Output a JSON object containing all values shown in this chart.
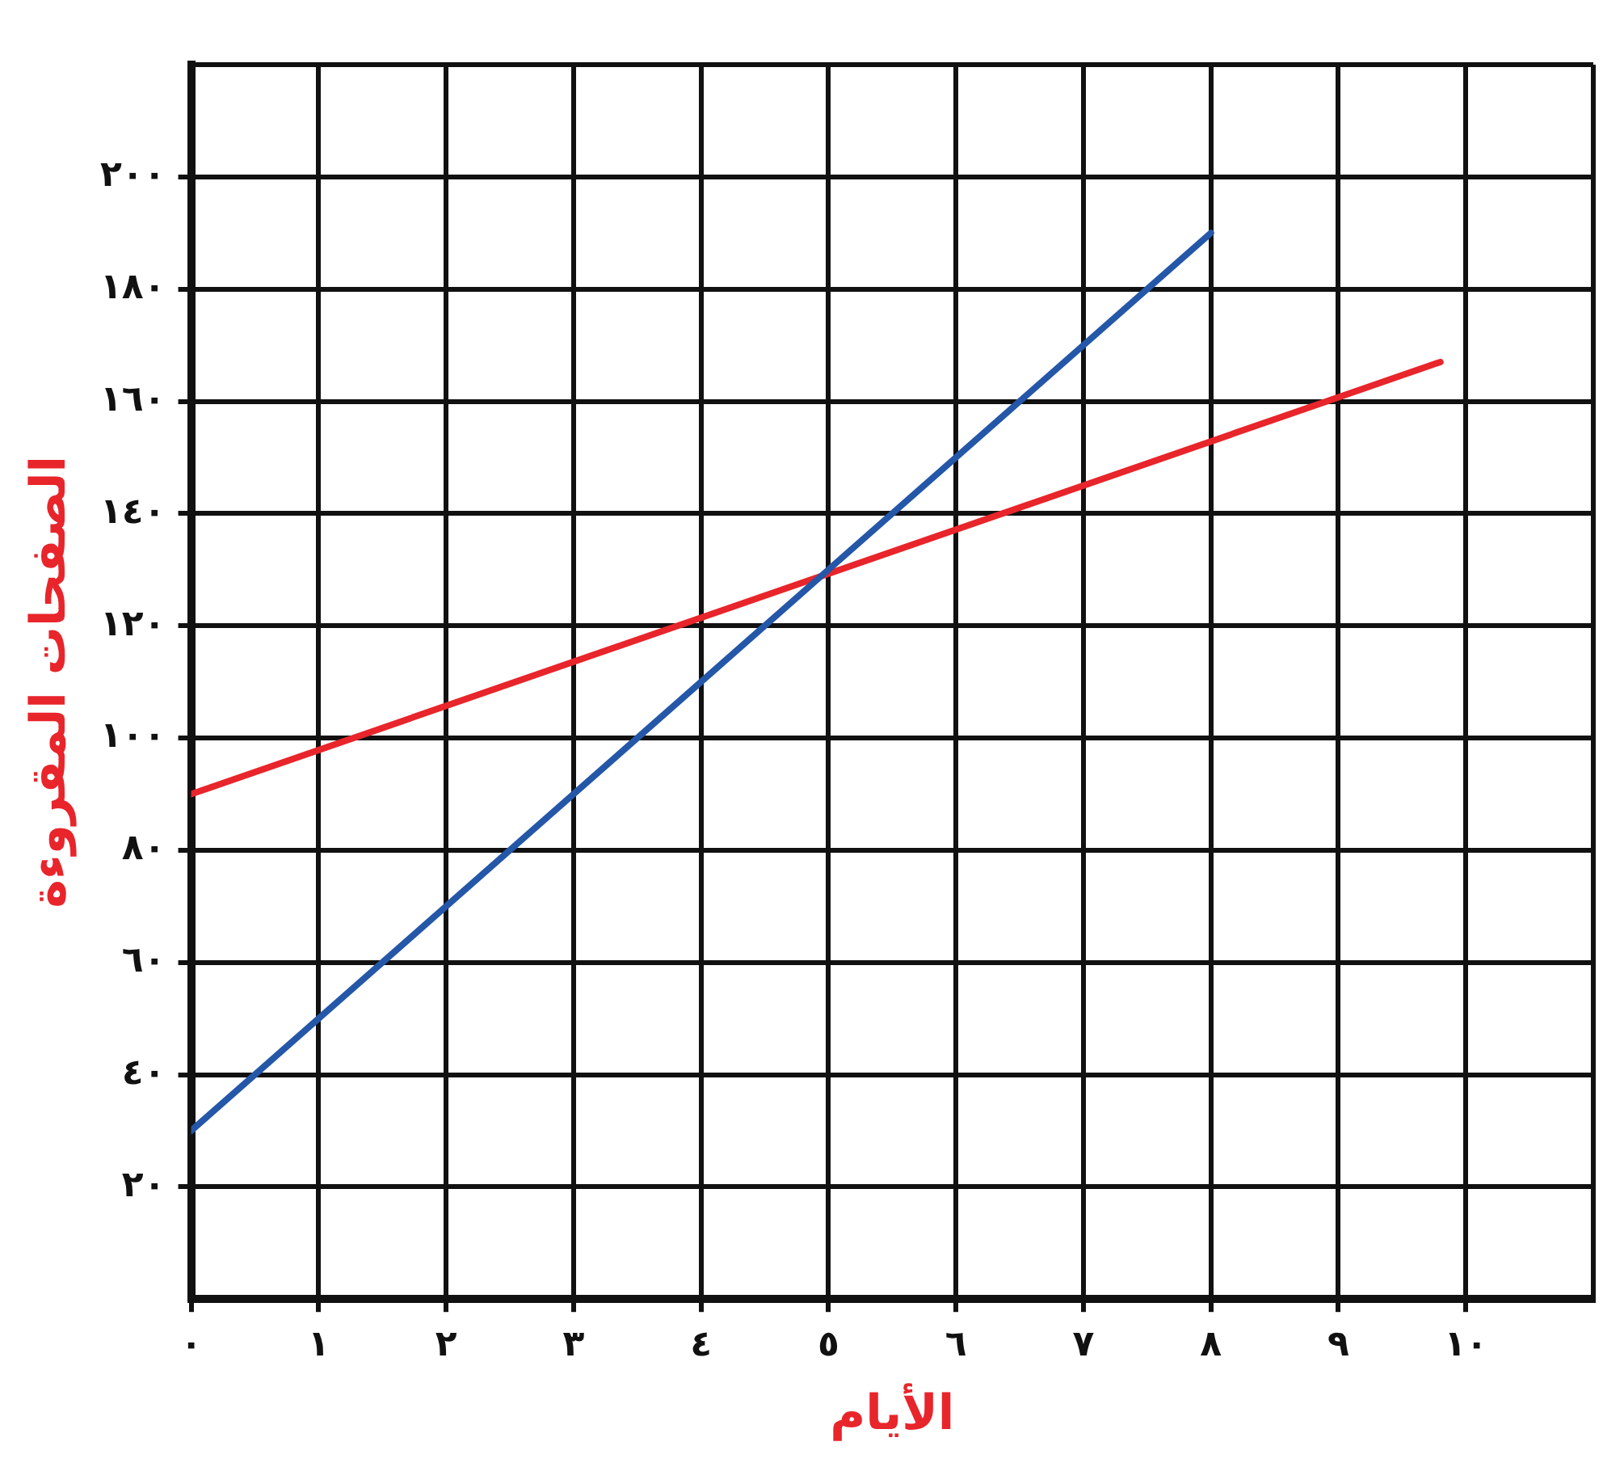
{
  "chart_data": {
    "type": "line",
    "xlabel": "الأيام",
    "ylabel": "الصفحات المقروءة",
    "xlim": [
      0,
      11
    ],
    "ylim": [
      0,
      220
    ],
    "xticks": [
      {
        "value": 0,
        "label": "٠"
      },
      {
        "value": 1,
        "label": "١"
      },
      {
        "value": 2,
        "label": "٢"
      },
      {
        "value": 3,
        "label": "٣"
      },
      {
        "value": 4,
        "label": "٤"
      },
      {
        "value": 5,
        "label": "٥"
      },
      {
        "value": 6,
        "label": "٦"
      },
      {
        "value": 7,
        "label": "٧"
      },
      {
        "value": 8,
        "label": "٨"
      },
      {
        "value": 9,
        "label": "٩"
      },
      {
        "value": 10,
        "label": "١٠"
      }
    ],
    "yticks": [
      {
        "value": 20,
        "label": "٢٠"
      },
      {
        "value": 40,
        "label": "٤٠"
      },
      {
        "value": 60,
        "label": "٦٠"
      },
      {
        "value": 80,
        "label": "٨٠"
      },
      {
        "value": 100,
        "label": "١٠٠"
      },
      {
        "value": 120,
        "label": "١٢٠"
      },
      {
        "value": 140,
        "label": "١٤٠"
      },
      {
        "value": 160,
        "label": "١٦٠"
      },
      {
        "value": 180,
        "label": "١٨٠"
      },
      {
        "value": 200,
        "label": "٢٠٠"
      }
    ],
    "grid": true,
    "legend": false,
    "marker": "none",
    "line_style": "solid",
    "series": [
      {
        "color": "#2457a8",
        "x": [
          0,
          8
        ],
        "values": [
          30,
          190
        ]
      },
      {
        "color": "#e8252b",
        "x": [
          0,
          9.8
        ],
        "values": [
          90,
          167
        ]
      }
    ]
  }
}
